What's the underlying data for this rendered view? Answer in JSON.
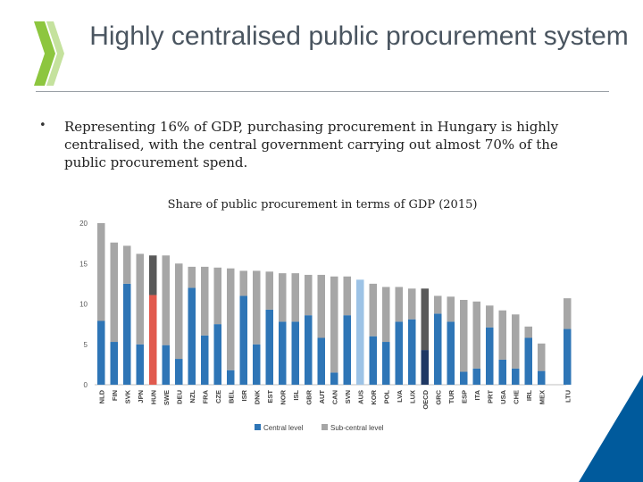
{
  "slide": {
    "title": "Highly centralised public procurement system",
    "bullet_marker": "•",
    "bullet_text": "Representing 16% of GDP, purchasing procurement in Hungary is highly centralised, with the central government carrying out almost 70% of the public procurement spend."
  },
  "colors": {
    "central": "#2e75b6",
    "sub_central": "#a6a6a6",
    "hun_central": "#e15a4e",
    "hun_sub": "#595959",
    "aus_central": "#9dc3e6",
    "oecd_central": "#1f3864",
    "oecd_sub": "#595959",
    "logo_green": "#8dc63f",
    "corner_blue": "#005a9c"
  },
  "chart_data": {
    "type": "bar",
    "stacked": true,
    "title": "Share of public procurement in terms of GDP (2015)",
    "categories": [
      "NLD",
      "FIN",
      "SVK",
      "JPN",
      "HUN",
      "SWE",
      "DEU",
      "NZL",
      "FRA",
      "CZE",
      "BEL",
      "ISR",
      "DNK",
      "EST",
      "NOR",
      "ISL",
      "GBR",
      "AUT",
      "CAN",
      "SVN",
      "AUS",
      "KOR",
      "POL",
      "LVA",
      "LUX",
      "OECD",
      "GRC",
      "TUR",
      "ESP",
      "ITA",
      "PRT",
      "USA",
      "CHE",
      "IRL",
      "MEX",
      "LTU"
    ],
    "series": [
      {
        "name": "Central level",
        "values": [
          7.9,
          5.3,
          12.5,
          5.0,
          11.1,
          4.9,
          3.2,
          12.0,
          6.1,
          7.5,
          1.8,
          11.0,
          5.0,
          9.3,
          7.8,
          7.8,
          8.6,
          5.8,
          1.5,
          8.6,
          13.0,
          6.0,
          5.3,
          7.8,
          8.1,
          4.3,
          8.8,
          7.8,
          1.6,
          2.0,
          7.1,
          3.1,
          2.0,
          5.8,
          1.7,
          6.9
        ]
      },
      {
        "name": "Sub-central level",
        "values": [
          12.1,
          12.3,
          4.7,
          11.2,
          4.9,
          11.1,
          11.8,
          2.6,
          8.5,
          7.0,
          12.6,
          3.1,
          9.1,
          4.7,
          6.0,
          6.0,
          5.0,
          7.8,
          11.9,
          4.8,
          0,
          6.5,
          6.8,
          4.3,
          3.8,
          7.6,
          2.2,
          3.1,
          8.9,
          8.3,
          2.7,
          6.1,
          6.7,
          1.4,
          3.4,
          3.8
        ]
      }
    ],
    "highlights": {
      "HUN": "hun",
      "AUS": "aus",
      "OECD": "oecd"
    },
    "ylim": [
      0,
      20
    ],
    "yticks": [
      0,
      5,
      10,
      15,
      20
    ],
    "grid": false,
    "legend": "bottom"
  }
}
